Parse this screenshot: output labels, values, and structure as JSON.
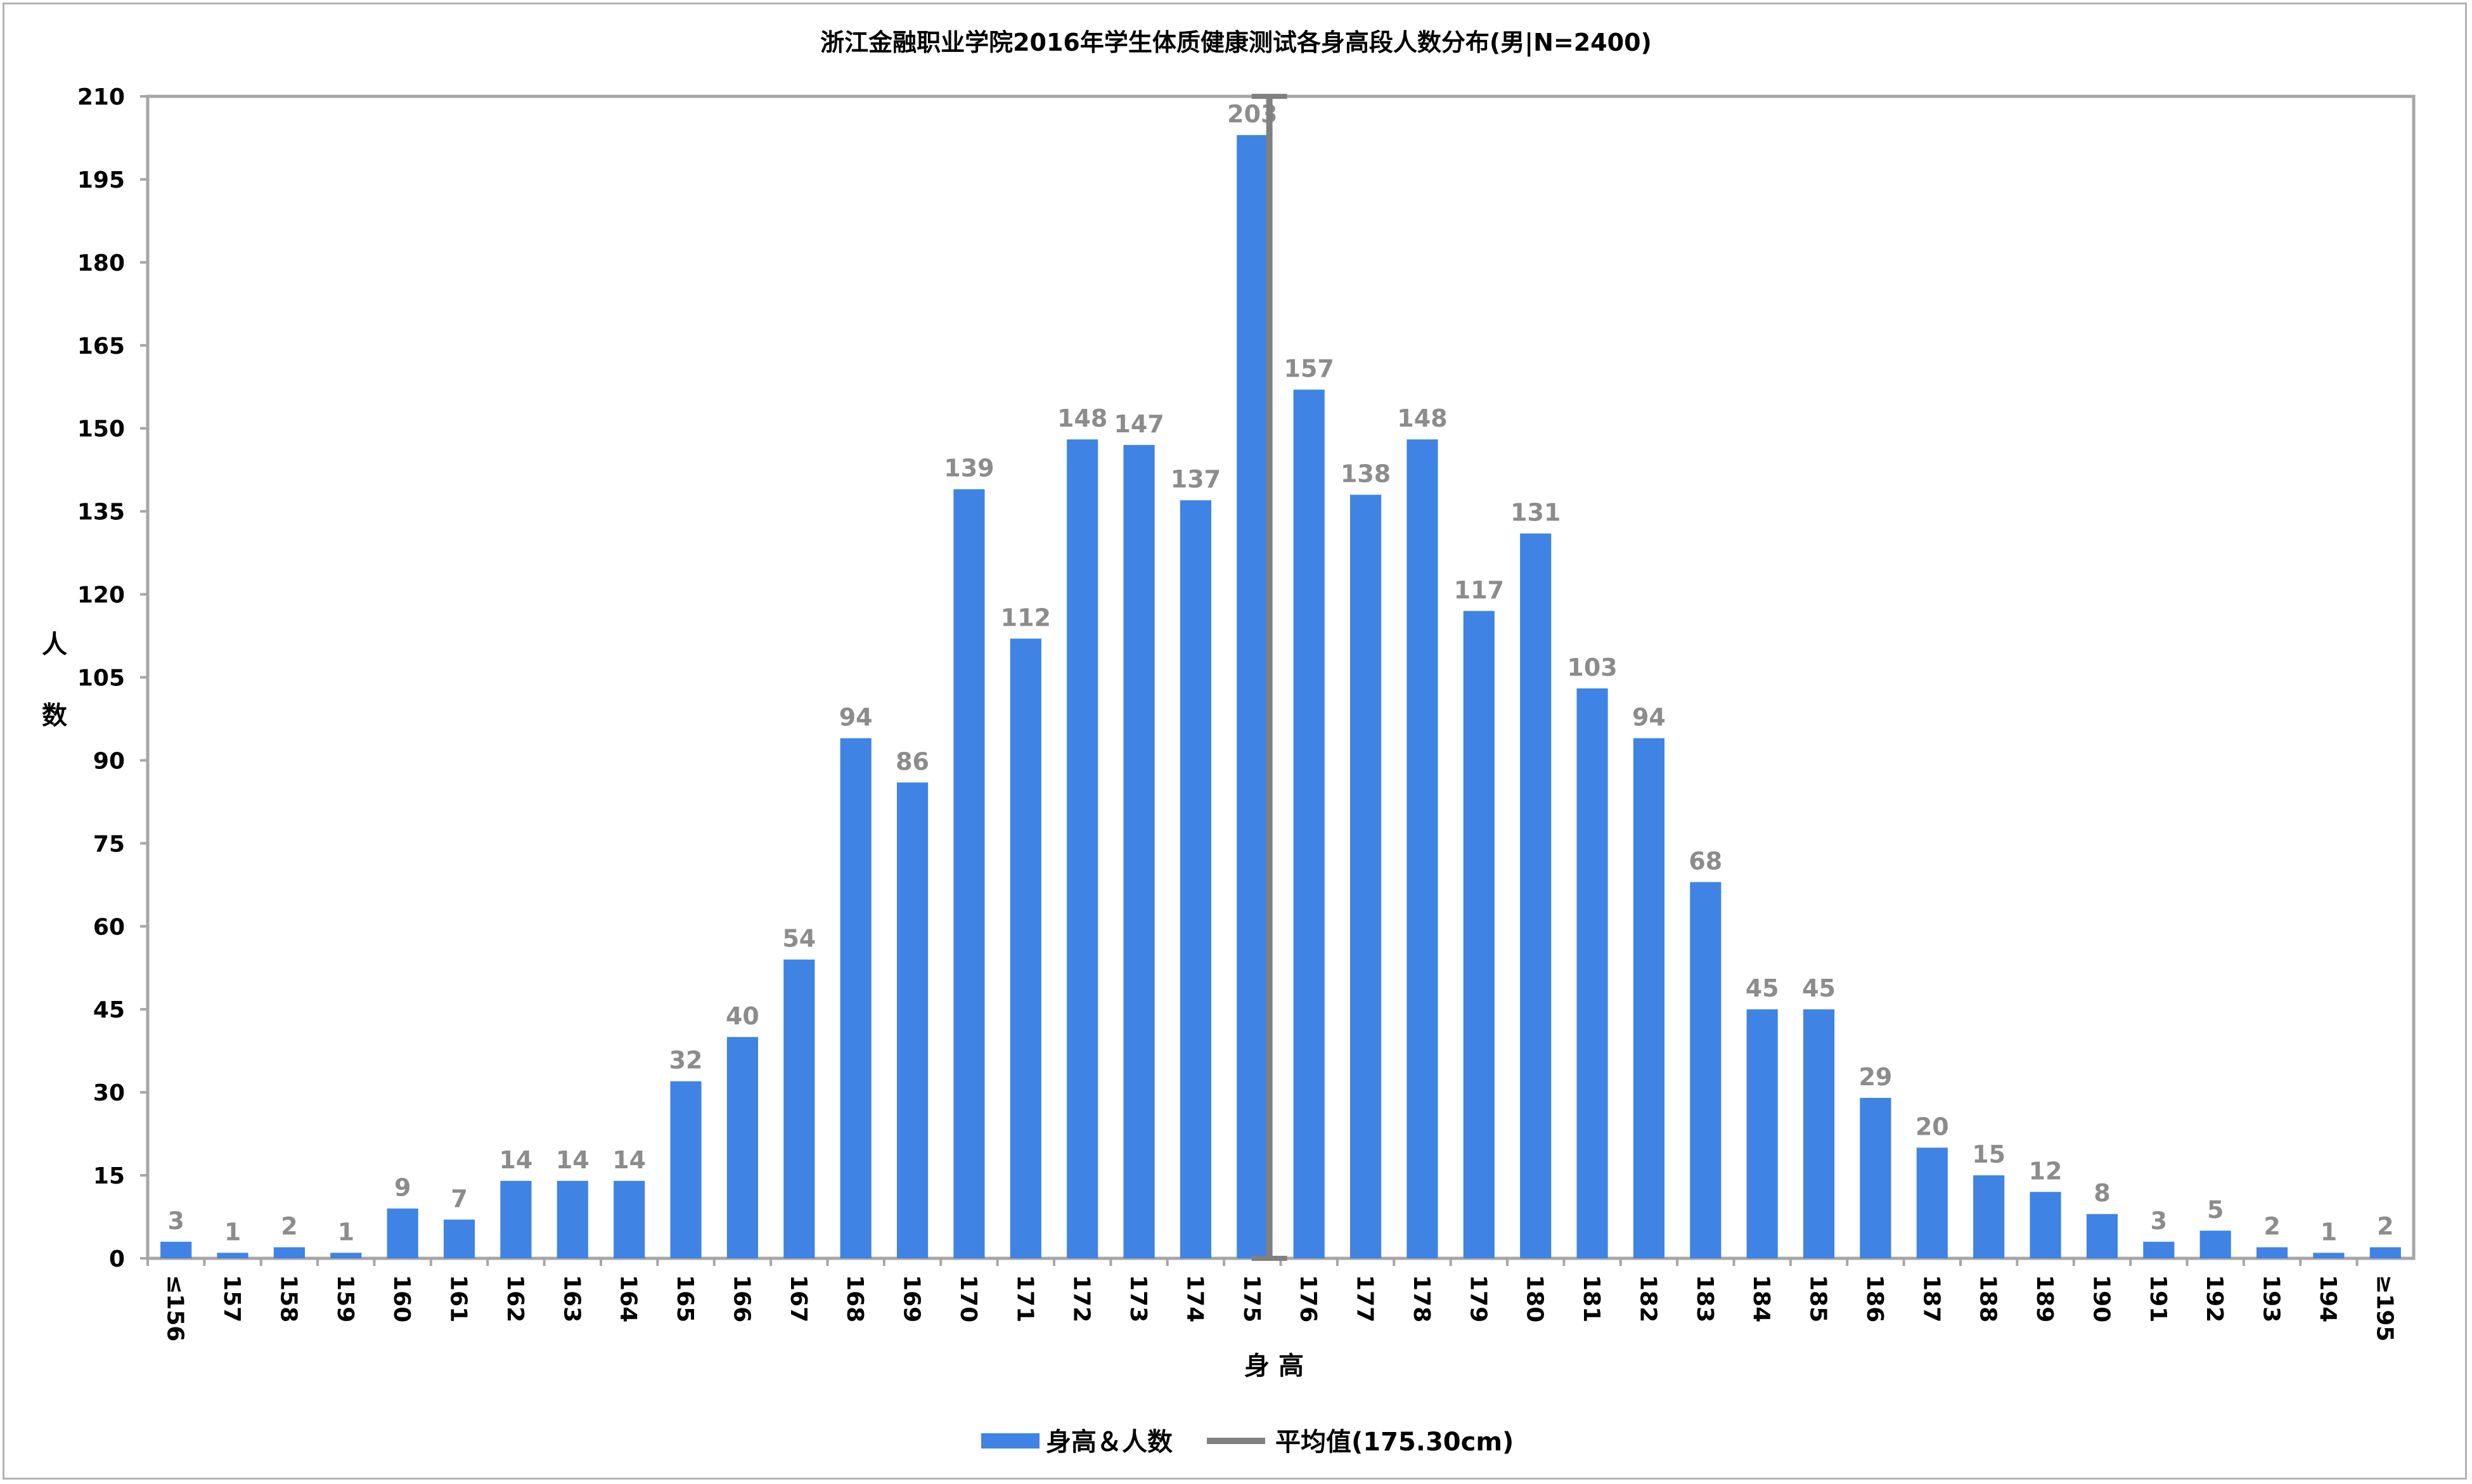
{
  "chart_data": {
    "type": "bar",
    "title": "浙江金融职业学院2016年学生体质健康测试各身高段人数分布(男|N=2400)",
    "xlabel": "身 高",
    "ylabel": "人数",
    "ylim": [
      0,
      210
    ],
    "yticks": [
      0,
      15,
      30,
      45,
      60,
      75,
      90,
      105,
      120,
      135,
      150,
      165,
      180,
      195,
      210
    ],
    "categories": [
      "≤156",
      "157",
      "158",
      "159",
      "160",
      "161",
      "162",
      "163",
      "164",
      "165",
      "166",
      "167",
      "168",
      "169",
      "170",
      "171",
      "172",
      "173",
      "174",
      "175",
      "176",
      "177",
      "178",
      "179",
      "180",
      "181",
      "182",
      "183",
      "184",
      "185",
      "186",
      "187",
      "188",
      "189",
      "190",
      "191",
      "192",
      "193",
      "194",
      "≥195"
    ],
    "series": [
      {
        "name": "身高＆人数",
        "color": "#3f83e4",
        "values": [
          3,
          1,
          2,
          1,
          9,
          7,
          14,
          14,
          14,
          32,
          40,
          54,
          94,
          86,
          139,
          112,
          148,
          147,
          137,
          203,
          157,
          138,
          148,
          117,
          131,
          103,
          94,
          68,
          45,
          45,
          29,
          20,
          15,
          12,
          8,
          3,
          5,
          2,
          1,
          2
        ]
      }
    ],
    "mean_line": {
      "name": "平均值(175.30cm)",
      "x": 175.3,
      "color": "#808080"
    },
    "legend_position": "bottom",
    "grid": false
  }
}
